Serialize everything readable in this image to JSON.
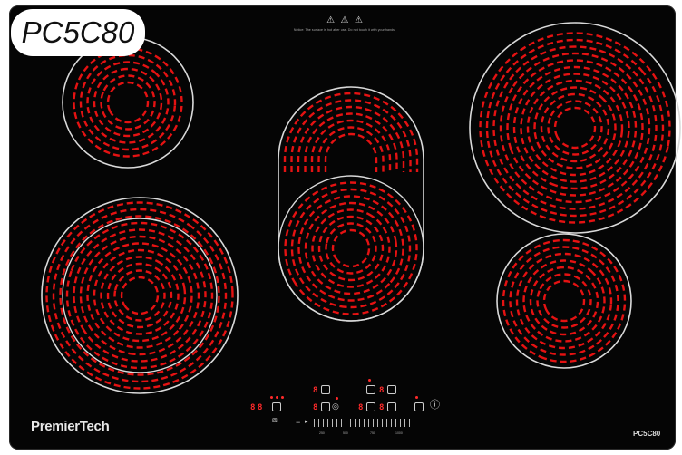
{
  "product": {
    "model_label": "PC5C80",
    "brand": "PremierTech",
    "model_footer": "PC5C80"
  },
  "warning": {
    "icons": [
      "hot-surface-icon",
      "caution-icon",
      "caution-icon"
    ],
    "text": "Notice: The surface is hot after use. Do not touch it with your hands!"
  },
  "controls": {
    "power_icon": "power-icon",
    "slider_minus": "−",
    "slider_plus": "+",
    "level_digits": [
      "8",
      "8",
      "8",
      "8",
      "8",
      "8",
      "8"
    ],
    "slider_ticks": [
      "250",
      "500",
      "750",
      "1000"
    ]
  },
  "colors": {
    "glass": "#050505",
    "element": "#e41212",
    "ring": "#d9d9d9"
  }
}
